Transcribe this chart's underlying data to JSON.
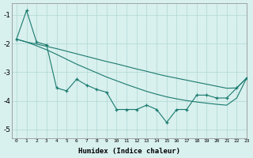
{
  "xlabel": "Humidex (Indice chaleur)",
  "bg_color": "#d8f0ee",
  "grid_color": "#b0d8d4",
  "line_color": "#1a7a6e",
  "x_data": [
    0,
    1,
    2,
    3,
    4,
    5,
    6,
    7,
    8,
    9,
    10,
    11,
    12,
    13,
    14,
    15,
    16,
    17,
    18,
    19,
    20,
    21,
    22,
    23
  ],
  "y_jagged": [
    -1.85,
    -0.85,
    -1.95,
    -2.05,
    -3.55,
    -3.65,
    -3.25,
    -3.45,
    -3.6,
    -3.7,
    -4.3,
    -4.3,
    -4.3,
    -4.15,
    -4.3,
    -4.75,
    -4.3,
    -4.3,
    -3.8,
    -3.8,
    -3.9,
    -3.9,
    -3.55,
    -3.2
  ],
  "y_upper": [
    -1.85,
    -1.95,
    -2.02,
    -2.1,
    -2.18,
    -2.27,
    -2.36,
    -2.45,
    -2.54,
    -2.63,
    -2.71,
    -2.8,
    -2.89,
    -2.97,
    -3.06,
    -3.14,
    -3.21,
    -3.28,
    -3.35,
    -3.42,
    -3.49,
    -3.56,
    -3.55,
    -3.2
  ],
  "y_lower": [
    -1.85,
    -1.95,
    -2.08,
    -2.22,
    -2.38,
    -2.55,
    -2.72,
    -2.87,
    -3.02,
    -3.17,
    -3.3,
    -3.43,
    -3.55,
    -3.67,
    -3.77,
    -3.86,
    -3.93,
    -3.99,
    -4.04,
    -4.08,
    -4.12,
    -4.15,
    -3.9,
    -3.2
  ],
  "xlim": [
    -0.5,
    23
  ],
  "ylim": [
    -5.3,
    -0.6
  ],
  "yticks": [
    -5,
    -4,
    -3,
    -2,
    -1
  ],
  "xticks": [
    0,
    1,
    2,
    3,
    4,
    5,
    6,
    7,
    8,
    9,
    10,
    11,
    12,
    13,
    14,
    15,
    16,
    17,
    18,
    19,
    20,
    21,
    22,
    23
  ]
}
